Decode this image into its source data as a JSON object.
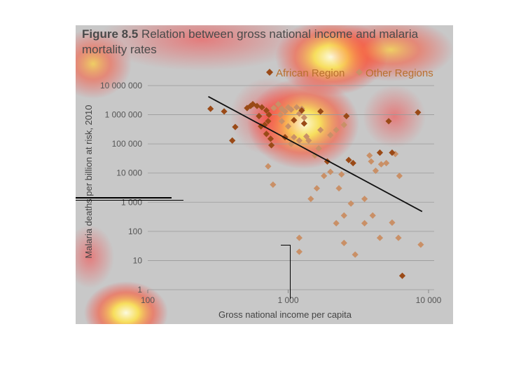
{
  "figure": {
    "label": "Figure 8.5",
    "caption": "Relation between gross national income and malaria mortality rates"
  },
  "colors": {
    "african": "#9a4a17",
    "other": "#c99067",
    "trend": "#111111",
    "grid": "#9a9a9a",
    "legend_text": "#b8702e"
  },
  "chart_data": {
    "type": "scatter",
    "xlabel": "Gross national income per capita",
    "ylabel": "Malaria deaths per billion at risk, 2010",
    "x_scale": "log",
    "y_scale": "log",
    "xlim": [
      100,
      10000
    ],
    "ylim": [
      1,
      10000000
    ],
    "x_ticks": [
      {
        "value": 100,
        "label": "100"
      },
      {
        "value": 1000,
        "label": "1 000"
      },
      {
        "value": 10000,
        "label": "10 000"
      }
    ],
    "y_ticks": [
      {
        "value": 1,
        "label": "1"
      },
      {
        "value": 10,
        "label": "10"
      },
      {
        "value": 100,
        "label": "100"
      },
      {
        "value": 1000,
        "label": "1 000"
      },
      {
        "value": 10000,
        "label": "10 000"
      },
      {
        "value": 100000,
        "label": "100 000"
      },
      {
        "value": 1000000,
        "label": "1 000 000"
      },
      {
        "value": 10000000,
        "label": "10 000 000"
      }
    ],
    "grid": "horizontal",
    "legend_position": "top-right",
    "series": [
      {
        "name": "African Region",
        "marker": "diamond",
        "points": [
          [
            280,
            1600000
          ],
          [
            350,
            1300000
          ],
          [
            420,
            380000
          ],
          [
            400,
            130000
          ],
          [
            510,
            1700000
          ],
          [
            540,
            2000000
          ],
          [
            560,
            2300000
          ],
          [
            600,
            2000000
          ],
          [
            650,
            1800000
          ],
          [
            700,
            1400000
          ],
          [
            730,
            1000000
          ],
          [
            620,
            900000
          ],
          [
            680,
            450000
          ],
          [
            640,
            400000
          ],
          [
            700,
            220000
          ],
          [
            750,
            150000
          ],
          [
            760,
            90000
          ],
          [
            720,
            600000
          ],
          [
            950,
            170000
          ],
          [
            1100,
            650000
          ],
          [
            1250,
            1400000
          ],
          [
            1300,
            500000
          ],
          [
            1700,
            1300000
          ],
          [
            2600,
            900000
          ],
          [
            1900,
            25000
          ],
          [
            2700,
            28000
          ],
          [
            2900,
            22000
          ],
          [
            4500,
            50000
          ],
          [
            5500,
            50000
          ],
          [
            5200,
            600000
          ],
          [
            8400,
            1200000
          ],
          [
            6500,
            3
          ]
        ]
      },
      {
        "name": "Other Regions",
        "marker": "diamond",
        "points": [
          [
            790,
            1700000
          ],
          [
            850,
            2300000
          ],
          [
            900,
            1600000
          ],
          [
            950,
            1300000
          ],
          [
            1000,
            1800000
          ],
          [
            1050,
            1500000
          ],
          [
            1150,
            1800000
          ],
          [
            1200,
            1100000
          ],
          [
            1250,
            1600000
          ],
          [
            1300,
            800000
          ],
          [
            880,
            1000000
          ],
          [
            900,
            600000
          ],
          [
            1000,
            400000
          ],
          [
            1100,
            170000
          ],
          [
            1200,
            130000
          ],
          [
            1350,
            180000
          ],
          [
            1050,
            100000
          ],
          [
            1400,
            130000
          ],
          [
            1550,
            40000
          ],
          [
            1650,
            70000
          ],
          [
            1700,
            300000
          ],
          [
            2000,
            200000
          ],
          [
            2200,
            300000
          ],
          [
            2500,
            450000
          ],
          [
            1800,
            8000
          ],
          [
            2000,
            11000
          ],
          [
            1600,
            3000
          ],
          [
            1450,
            1300
          ],
          [
            2300,
            3000
          ],
          [
            2400,
            9000
          ],
          [
            3800,
            40000
          ],
          [
            3900,
            25000
          ],
          [
            4200,
            12000
          ],
          [
            4600,
            20000
          ],
          [
            5000,
            22000
          ],
          [
            5800,
            45000
          ],
          [
            6200,
            8000
          ],
          [
            720,
            17000
          ],
          [
            780,
            4000
          ],
          [
            2200,
            190
          ],
          [
            2500,
            350
          ],
          [
            2800,
            900
          ],
          [
            3500,
            1300
          ],
          [
            3500,
            190
          ],
          [
            4000,
            350
          ],
          [
            4500,
            60
          ],
          [
            5500,
            200
          ],
          [
            6100,
            60
          ],
          [
            8800,
            35
          ],
          [
            1200,
            60
          ],
          [
            1200,
            20
          ],
          [
            2500,
            40
          ],
          [
            3000,
            16
          ]
        ]
      }
    ],
    "trendline": {
      "x": [
        270,
        9000
      ],
      "y": [
        4200000,
        480
      ]
    }
  }
}
